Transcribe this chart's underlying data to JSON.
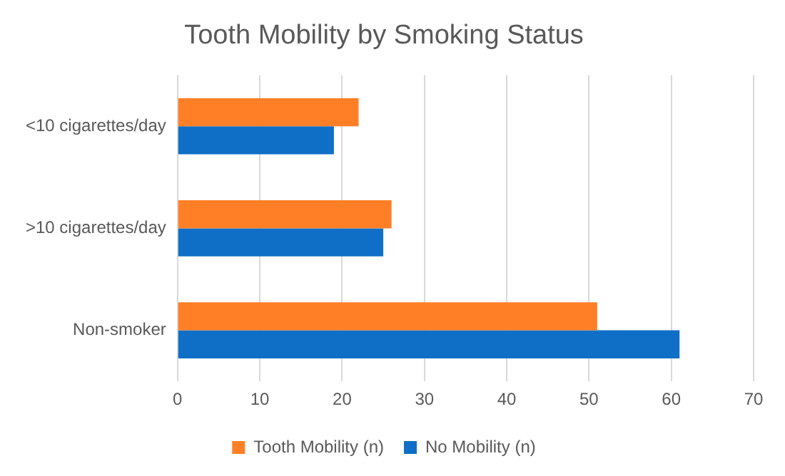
{
  "chart_data": {
    "type": "bar",
    "orientation": "horizontal",
    "title": "Tooth Mobility by Smoking Status",
    "categories": [
      "<10 cigarettes/day",
      ">10 cigarettes/day",
      "Non-smoker"
    ],
    "series": [
      {
        "name": "Tooth Mobility (n)",
        "color": "#ff7f27",
        "values": [
          22,
          26,
          51
        ]
      },
      {
        "name": "No Mobility (n)",
        "color": "#0f6fc6",
        "values": [
          19,
          25,
          61
        ]
      }
    ],
    "xlim": [
      0,
      70
    ],
    "xticks": [
      0,
      10,
      20,
      30,
      40,
      50,
      60,
      70
    ],
    "grid": "x",
    "legend": "bottom"
  }
}
